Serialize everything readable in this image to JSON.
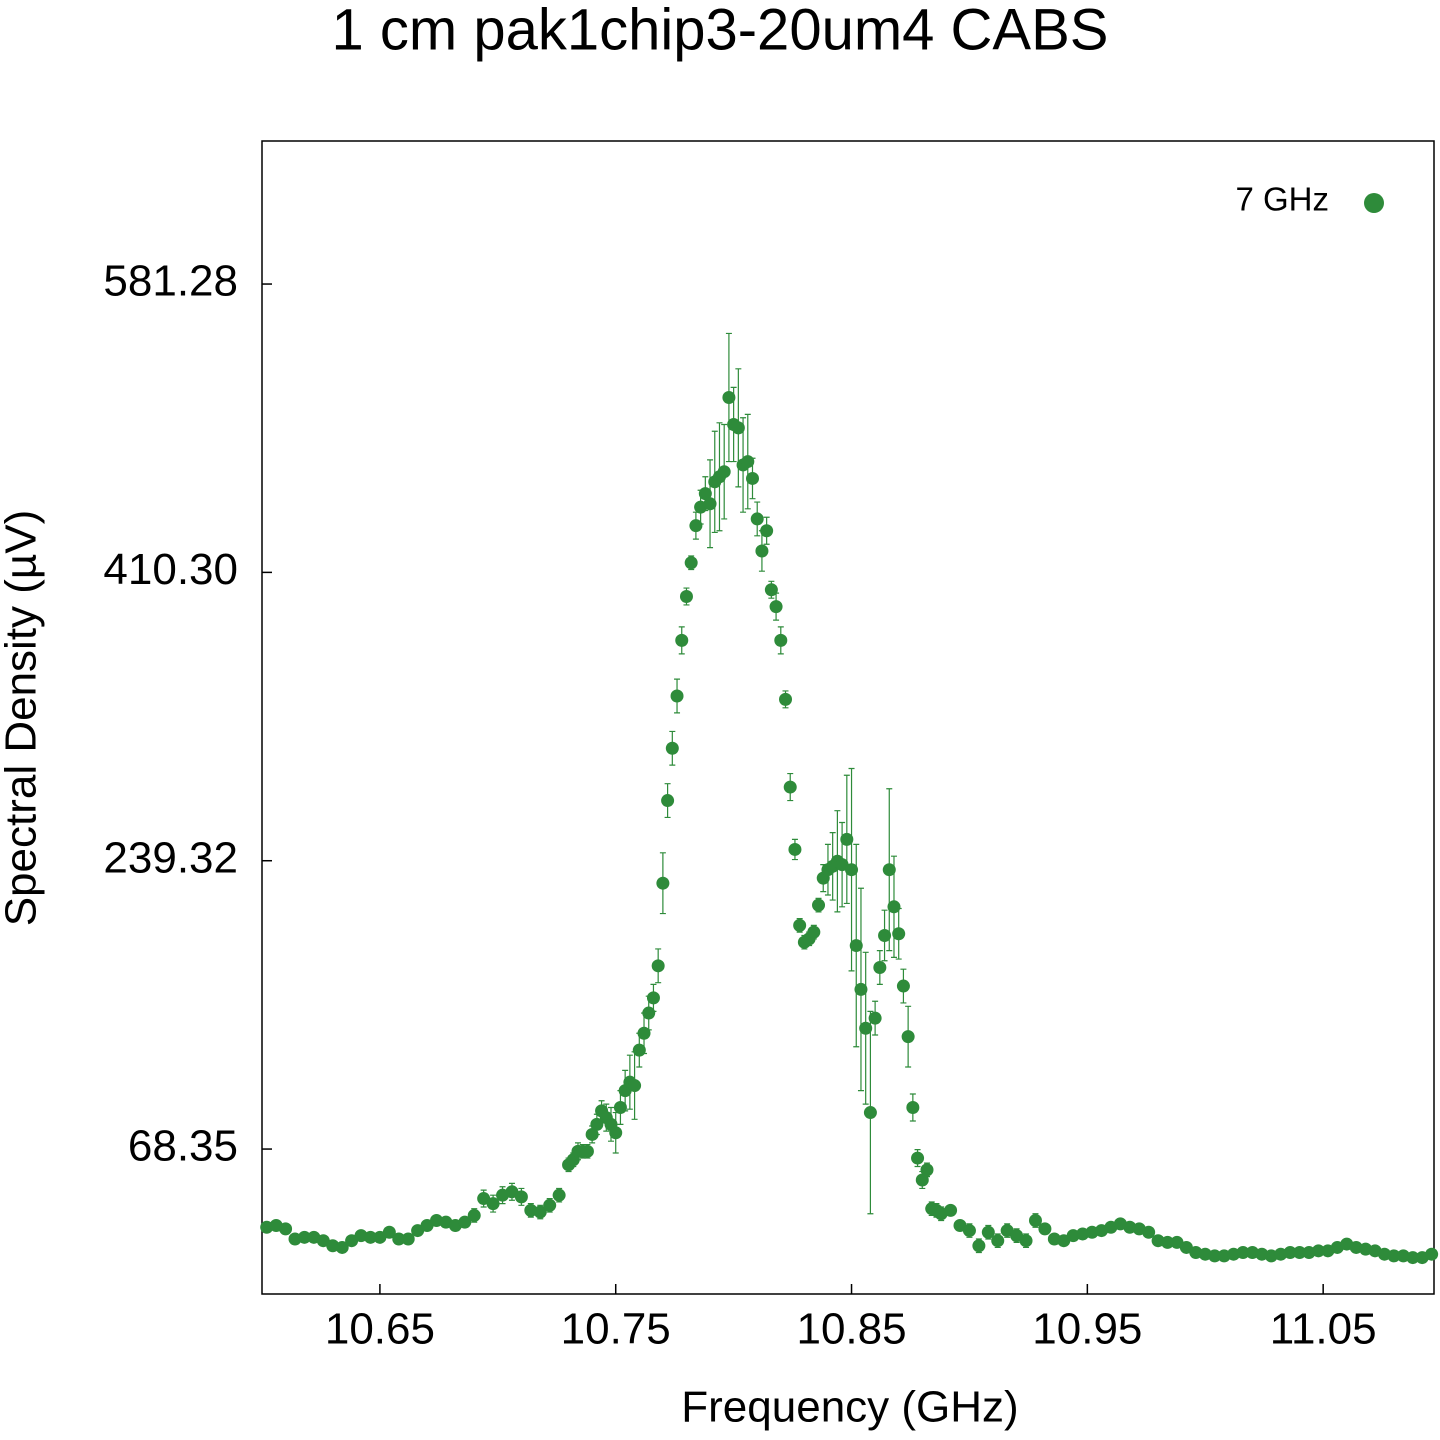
{
  "chart_data": {
    "type": "scatter",
    "title": "1 cm pak1chip3-20um4 CABS",
    "xlabel": "Frequency (GHz)",
    "ylabel": "Spectral Density (µV)",
    "xlim": [
      10.6,
      11.097
    ],
    "ylim": [
      -17.6,
      666.1
    ],
    "xticks": [
      10.65,
      10.75,
      10.85,
      10.95,
      11.05
    ],
    "yticks": [
      68.35,
      239.32,
      {
        "value": 410.3,
        "label": "410.30"
      },
      581.28
    ],
    "legend": "upper right",
    "grid": false,
    "x": [
      10.602,
      10.606,
      10.61,
      10.614,
      10.618,
      10.622,
      10.626,
      10.63,
      10.634,
      10.638,
      10.642,
      10.646,
      10.65,
      10.654,
      10.658,
      10.662,
      10.666,
      10.67,
      10.674,
      10.678,
      10.682,
      10.686,
      10.69,
      10.694,
      10.698,
      10.702,
      10.706,
      10.71,
      10.714,
      10.718,
      10.722,
      10.726,
      10.73,
      10.732,
      10.734,
      10.736,
      10.738,
      10.74,
      10.742,
      10.744,
      10.746,
      10.748,
      10.75,
      10.752,
      10.754,
      10.756,
      10.758,
      10.76,
      10.762,
      10.764,
      10.766,
      10.768,
      10.77,
      10.772,
      10.774,
      10.776,
      10.778,
      10.78,
      10.782,
      10.784,
      10.786,
      10.788,
      10.79,
      10.792,
      10.794,
      10.796,
      10.798,
      10.8,
      10.802,
      10.804,
      10.806,
      10.808,
      10.81,
      10.812,
      10.814,
      10.816,
      10.818,
      10.82,
      10.822,
      10.824,
      10.826,
      10.828,
      10.83,
      10.832,
      10.834,
      10.836,
      10.838,
      10.84,
      10.842,
      10.844,
      10.846,
      10.848,
      10.85,
      10.852,
      10.854,
      10.856,
      10.858,
      10.86,
      10.862,
      10.864,
      10.866,
      10.868,
      10.87,
      10.872,
      10.874,
      10.876,
      10.878,
      10.88,
      10.882,
      10.884,
      10.886,
      10.888,
      10.892,
      10.896,
      10.9,
      10.904,
      10.908,
      10.912,
      10.916,
      10.92,
      10.924,
      10.928,
      10.932,
      10.936,
      10.94,
      10.944,
      10.948,
      10.952,
      10.956,
      10.96,
      10.964,
      10.968,
      10.972,
      10.976,
      10.98,
      10.984,
      10.988,
      10.992,
      10.996,
      11.0,
      11.004,
      11.008,
      11.012,
      11.016,
      11.02,
      11.024,
      11.028,
      11.032,
      11.036,
      11.04,
      11.044,
      11.048,
      11.052,
      11.056,
      11.06,
      11.064,
      11.068,
      11.072,
      11.076,
      11.08,
      11.084,
      11.088,
      11.092,
      11.096
    ],
    "series": [
      {
        "name": "7 GHz",
        "color": "#2e8b3a",
        "values": [
          22,
          23,
          21,
          15,
          16,
          16,
          14,
          11,
          10,
          14,
          17,
          16,
          16,
          19,
          15,
          15,
          20,
          23,
          26,
          25,
          23,
          25,
          29,
          39,
          36,
          41,
          43,
          40,
          32,
          31,
          35,
          41,
          59,
          62,
          67,
          67,
          67,
          77,
          83,
          91,
          87,
          83,
          78,
          93,
          103,
          108,
          106,
          127,
          137,
          149,
          158,
          177,
          226,
          275,
          306,
          337,
          370,
          396,
          416,
          438,
          449,
          457,
          451,
          464,
          467,
          470,
          514,
          498,
          496,
          474,
          476,
          466,
          442,
          423,
          435,
          400,
          390,
          370,
          335,
          283,
          246,
          201,
          191,
          193,
          197,
          213,
          229,
          234,
          236,
          239,
          237,
          252,
          234,
          189,
          163,
          140,
          90,
          146,
          176,
          195,
          234,
          212,
          196,
          165,
          135,
          93,
          63,
          50,
          56,
          33,
          32,
          30,
          32,
          23,
          20,
          11,
          19,
          14,
          20,
          17,
          14,
          26,
          21,
          15,
          14,
          17,
          18,
          19,
          20,
          22,
          24,
          22,
          21,
          19,
          14,
          13,
          13,
          10,
          7,
          6,
          5,
          5,
          6,
          7,
          7,
          6,
          5,
          6,
          7,
          7,
          7,
          8,
          8,
          10,
          12,
          10,
          9,
          8,
          6,
          5,
          5,
          4,
          4,
          6
        ],
        "errors": [
          3,
          3,
          3,
          3,
          3,
          3,
          3,
          3,
          3,
          3,
          3,
          3,
          3,
          3,
          3,
          3,
          3,
          3,
          3,
          3,
          3,
          3,
          4,
          5,
          5,
          5,
          5,
          5,
          4,
          4,
          4,
          4,
          4,
          4,
          5,
          4,
          4,
          5,
          6,
          6,
          8,
          10,
          12,
          10,
          12,
          16,
          20,
          10,
          12,
          10,
          8,
          10,
          18,
          10,
          10,
          10,
          8,
          5,
          4,
          8,
          10,
          10,
          26,
          30,
          32,
          28,
          38,
          22,
          35,
          28,
          28,
          12,
          10,
          12,
          8,
          5,
          8,
          8,
          5,
          8,
          6,
          4,
          4,
          4,
          4,
          4,
          8,
          15,
          20,
          30,
          25,
          38,
          60,
          60,
          60,
          45,
          60,
          10,
          10,
          15,
          48,
          30,
          15,
          10,
          18,
          8,
          5,
          5,
          4,
          4,
          4,
          4,
          3,
          3,
          4,
          4,
          4,
          4,
          4,
          4,
          4,
          4,
          3,
          3,
          3,
          3,
          3,
          3,
          3,
          3,
          3,
          3,
          3,
          3,
          3,
          3,
          3,
          3,
          3,
          3,
          3,
          3,
          3,
          3,
          3,
          3,
          3,
          3,
          3,
          3,
          3,
          3,
          3,
          3,
          3,
          3,
          3,
          3,
          3,
          3,
          3,
          3,
          3,
          3
        ]
      }
    ]
  }
}
